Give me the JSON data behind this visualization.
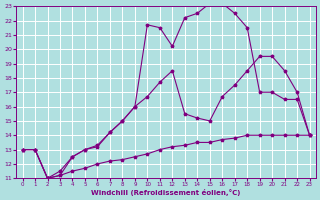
{
  "xlabel": "Windchill (Refroidissement éolien,°C)",
  "xlim": [
    -0.5,
    23.5
  ],
  "ylim": [
    11,
    23
  ],
  "yticks": [
    11,
    12,
    13,
    14,
    15,
    16,
    17,
    18,
    19,
    20,
    21,
    22,
    23
  ],
  "xticks": [
    0,
    1,
    2,
    3,
    4,
    5,
    6,
    7,
    8,
    9,
    10,
    11,
    12,
    13,
    14,
    15,
    16,
    17,
    18,
    19,
    20,
    21,
    22,
    23
  ],
  "background_color": "#b0e0e0",
  "grid_color": "#ffffff",
  "line_color": "#800080",
  "line1_x": [
    0,
    1,
    2,
    3,
    4,
    5,
    6,
    7,
    8,
    9,
    10,
    11,
    12,
    13,
    14,
    15,
    16,
    17,
    18,
    19,
    20,
    21,
    22,
    23
  ],
  "line1_y": [
    13.0,
    13.0,
    11.0,
    11.2,
    12.5,
    13.0,
    13.2,
    14.2,
    15.0,
    16.0,
    21.7,
    21.5,
    20.2,
    22.2,
    22.5,
    23.2,
    23.2,
    22.5,
    21.5,
    17.0,
    17.0,
    16.5,
    16.5,
    14.0
  ],
  "line2_x": [
    0,
    1,
    2,
    3,
    4,
    5,
    6,
    7,
    8,
    9,
    10,
    11,
    12,
    13,
    14,
    15,
    16,
    17,
    18,
    19,
    20,
    21,
    22,
    23
  ],
  "line2_y": [
    13.0,
    13.0,
    11.0,
    11.5,
    12.5,
    13.0,
    13.3,
    14.2,
    15.0,
    16.0,
    16.7,
    17.7,
    18.5,
    15.5,
    15.2,
    15.0,
    16.7,
    17.5,
    18.5,
    19.5,
    19.5,
    18.5,
    17.0,
    14.0
  ],
  "line3_x": [
    0,
    1,
    2,
    3,
    4,
    5,
    6,
    7,
    8,
    9,
    10,
    11,
    12,
    13,
    14,
    15,
    16,
    17,
    18,
    19,
    20,
    21,
    22,
    23
  ],
  "line3_y": [
    13.0,
    13.0,
    11.0,
    11.2,
    11.5,
    11.7,
    12.0,
    12.2,
    12.3,
    12.5,
    12.7,
    13.0,
    13.2,
    13.3,
    13.5,
    13.5,
    13.7,
    13.8,
    14.0,
    14.0,
    14.0,
    14.0,
    14.0,
    14.0
  ]
}
